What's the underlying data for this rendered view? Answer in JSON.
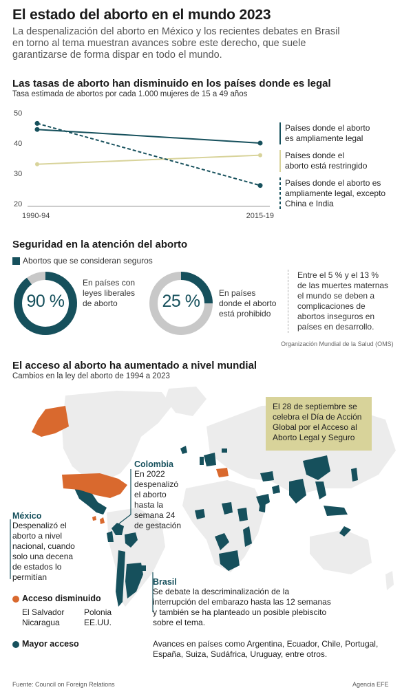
{
  "header": {
    "title": "El estado del aborto en el mundo 2023",
    "intro_lines": [
      "La despenalización del aborto en México y los recientes debates en Brasil",
      "en torno al tema muestran avances sobre este derecho, que suele",
      "garantizarse de forma dispar en todo el mundo."
    ]
  },
  "chart_data": [
    {
      "type": "line",
      "title": "Las tasas de aborto han disminuido en los países donde es legal",
      "subtitle": "Tasa estimada de abortos por cada 1.000 mujeres de 15 a 49 años",
      "categories": [
        "1990-94",
        "2015-19"
      ],
      "ylim": [
        20,
        50
      ],
      "yticks": [
        50,
        40,
        30,
        20
      ],
      "grid": false,
      "series": [
        {
          "name_lines": [
            "Países donde el aborto",
            "es ampliamente legal"
          ],
          "values": [
            44.5,
            40
          ],
          "color": "#16505c",
          "style": "solid"
        },
        {
          "name_lines": [
            "Países donde el",
            "aborto está restringido"
          ],
          "values": [
            33,
            36
          ],
          "color": "#d8d39a",
          "style": "solid"
        },
        {
          "name_lines": [
            "Países donde el aborto es",
            "ampliamente legal, excepto",
            "China e India"
          ],
          "values": [
            46.5,
            26
          ],
          "color": "#16505c",
          "style": "dashed"
        }
      ]
    },
    {
      "type": "pie",
      "title": "Seguridad en la atención del aborto",
      "legend": "Abortos que se consideran seguros",
      "donuts": [
        {
          "value": 90,
          "label": "90 %",
          "desc_lines": [
            "En países con",
            "leyes liberales",
            "de aborto"
          ]
        },
        {
          "value": 25,
          "label": "25 %",
          "desc_lines": [
            "En países",
            "donde el aborto",
            "está prohibido"
          ]
        }
      ]
    }
  ],
  "safety": {
    "note_lines": [
      "Entre el 5 % y el 13 %",
      "de las muertes maternas",
      "el mundo se deben a",
      "complicaciones de",
      "abortos inseguros en",
      "países en desarrollo."
    ],
    "source": "Organización Mundial de la Salud (OMS)"
  },
  "map": {
    "title": "El acceso al aborto ha aumentado a nivel mundial",
    "subtitle": "Cambios en la ley del aborto de 1994 a 2023",
    "callout_lines": [
      "El 28 de septiembre se",
      "celebra el Día de Acción",
      "Global por el Acceso al",
      "Aborto Legal y Seguro"
    ],
    "colombia": {
      "name": "Colombia",
      "lines": [
        "En 2022",
        "despenalizó",
        "el aborto",
        "hasta la",
        "semana 24",
        "de gestación"
      ]
    },
    "mexico": {
      "name": "México",
      "lines": [
        "Despenalizó el",
        "aborto a nivel",
        "nacional, cuando",
        "solo una decena",
        "de estados lo",
        "permitían"
      ]
    },
    "brasil": {
      "name": "Brasil",
      "lines": [
        "Se debate la descriminalización de la",
        "interrupción del embarazo hasta las 12 semanas",
        "y también se ha planteado un posible plebiscito",
        "sobre el tema."
      ]
    },
    "legend_decreased": {
      "title": "Acceso disminuido",
      "countries": [
        "El Salvador",
        "Nicaragua",
        "Polonia",
        "EE.UU."
      ]
    },
    "legend_increased": {
      "title": "Mayor acceso",
      "note_lines": [
        "Avances en países como Argentina, Ecuador, Chile, Portugal,",
        "España, Suiza, Sudáfrica, Uruguay, entre otros."
      ]
    }
  },
  "footer": {
    "source": "Fuente: Council on Foreign Relations",
    "agency": "Agencia EFE"
  },
  "colors": {
    "teal": "#16505c",
    "orange": "#d9692e",
    "khaki": "#d8d39a",
    "land": "#ececec"
  }
}
